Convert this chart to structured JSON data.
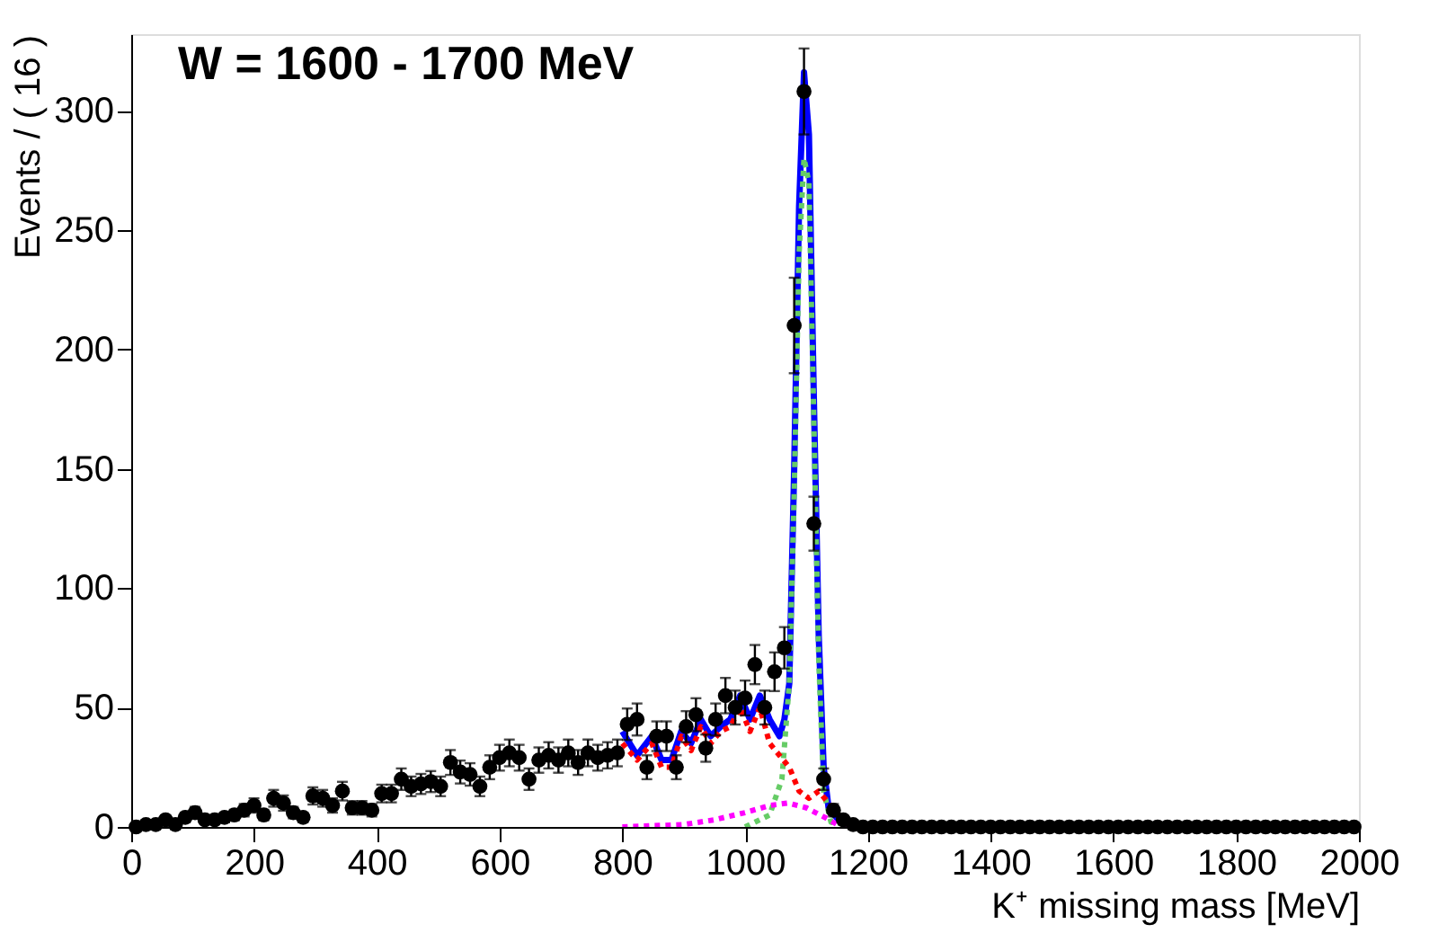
{
  "chart_data": {
    "type": "scatter",
    "xlabel": "K⁺ missing mass [MeV]",
    "ylabel": "Events / ( 16 )",
    "annotations": [
      "W = 1600 - 1700 MeV"
    ],
    "xlim": [
      0,
      2000
    ],
    "xticks": [
      0,
      200,
      400,
      600,
      800,
      1000,
      1200,
      1400,
      1600,
      1800,
      2000
    ],
    "ylim": [
      0,
      332
    ],
    "yticks": [
      0,
      50,
      100,
      150,
      200,
      250,
      300
    ],
    "grid": false,
    "series": [
      {
        "marker": "circle",
        "color": "#000000",
        "x": [
          8,
          24,
          40,
          56,
          72,
          88,
          104,
          120,
          136,
          152,
          168,
          184,
          200,
          216,
          232,
          248,
          264,
          280,
          296,
          312,
          328,
          344,
          360,
          376,
          392,
          408,
          424,
          440,
          456,
          472,
          488,
          504,
          520,
          536,
          552,
          568,
          584,
          600,
          616,
          632,
          648,
          664,
          680,
          696,
          712,
          728,
          744,
          760,
          776,
          792,
          808,
          824,
          840,
          856,
          872,
          888,
          904,
          920,
          936,
          952,
          968,
          984,
          1000,
          1016,
          1032,
          1048,
          1064,
          1080,
          1096,
          1112,
          1128,
          1144,
          1160,
          1176,
          1192,
          1208,
          1224,
          1240,
          1256,
          1272,
          1288,
          1304,
          1320,
          1336,
          1352,
          1368,
          1384,
          1400,
          1416,
          1432,
          1448,
          1464,
          1480,
          1496,
          1512,
          1528,
          1544,
          1560,
          1576,
          1592,
          1608,
          1624,
          1640,
          1656,
          1672,
          1688,
          1704,
          1720,
          1736,
          1752,
          1768,
          1784,
          1800,
          1816,
          1832,
          1848,
          1864,
          1880,
          1896,
          1912,
          1928,
          1944,
          1960,
          1976,
          1992
        ],
        "values": [
          0,
          1,
          1,
          3,
          1,
          4,
          6,
          3,
          3,
          4,
          5,
          7,
          9,
          5,
          12,
          10,
          6,
          4,
          13,
          12,
          9,
          15,
          8,
          8,
          7,
          14,
          14,
          20,
          17,
          18,
          19,
          17,
          27,
          23,
          22,
          17,
          25,
          29,
          31,
          29,
          20,
          28,
          30,
          28,
          31,
          27,
          31,
          29,
          30,
          31,
          43,
          45,
          25,
          38,
          38,
          25,
          42,
          47,
          33,
          45,
          55,
          50,
          54,
          68,
          50,
          65,
          75,
          210,
          308,
          127,
          20,
          7,
          3,
          1,
          0,
          0,
          0,
          0,
          0,
          0,
          0,
          0,
          0,
          0,
          0,
          0,
          0,
          0,
          0,
          0,
          0,
          0,
          0,
          0,
          0,
          0,
          0,
          0,
          0,
          0,
          0,
          0,
          0,
          0,
          0,
          0,
          0,
          0,
          0,
          0,
          0,
          0,
          0,
          0,
          0,
          0,
          0,
          0,
          0,
          0,
          0,
          0,
          0,
          0,
          0
        ],
        "errors": [
          null,
          1,
          1,
          1.7,
          1,
          2,
          2.4,
          1.7,
          1.7,
          2,
          2.2,
          2.6,
          3,
          2.2,
          3.5,
          3.2,
          2.4,
          2,
          3.6,
          3.5,
          3,
          3.9,
          2.8,
          2.8,
          2.6,
          3.7,
          3.7,
          4.5,
          4.1,
          4.2,
          4.4,
          4.1,
          5.2,
          4.8,
          4.7,
          4.1,
          5,
          5.4,
          5.6,
          5.4,
          4.5,
          5.3,
          5.5,
          5.3,
          5.6,
          5.2,
          5.6,
          5.4,
          5.5,
          5.6,
          6.6,
          6.7,
          5,
          6.2,
          6.2,
          5,
          6.5,
          6.9,
          5.7,
          6.7,
          7.4,
          7.1,
          7.3,
          8.2,
          7.1,
          8.1,
          8.7,
          20,
          18,
          11.3,
          4.5,
          2.6,
          1.7,
          1,
          null,
          null,
          null,
          null,
          null,
          null,
          null,
          null,
          null,
          null,
          null,
          null,
          null,
          null,
          null,
          null,
          null,
          null,
          null,
          null,
          null,
          null,
          null,
          null,
          null,
          null,
          null,
          null,
          null,
          null,
          null,
          null,
          null,
          null,
          null,
          null,
          null,
          null,
          null,
          null,
          null,
          null,
          null,
          null,
          null,
          null,
          null,
          null,
          null,
          null,
          null
        ]
      },
      {
        "type": "line",
        "line_style": "solid",
        "color": "#0000ff",
        "x": [
          800,
          824,
          848,
          864,
          880,
          896,
          912,
          928,
          944,
          960,
          976,
          992,
          1008,
          1024,
          1040,
          1056,
          1064,
          1072,
          1080,
          1088,
          1096,
          1104,
          1112,
          1120,
          1128,
          1136,
          1152,
          1168
        ],
        "values": [
          40,
          30,
          38,
          28,
          28,
          40,
          35,
          45,
          38,
          42,
          45,
          55,
          45,
          55,
          45,
          38,
          45,
          60,
          150,
          260,
          316,
          290,
          180,
          80,
          25,
          8,
          3,
          1
        ]
      },
      {
        "type": "line",
        "line_style": "dotted",
        "color": "#66cc66",
        "x": [
          1000,
          1040,
          1060,
          1072,
          1080,
          1088,
          1096,
          1104,
          1112,
          1120,
          1128,
          1140,
          1200
        ],
        "values": [
          0,
          5,
          20,
          60,
          140,
          240,
          280,
          270,
          170,
          70,
          15,
          2,
          0
        ]
      },
      {
        "type": "line",
        "line_style": "dotted",
        "color": "#ff0000",
        "x": [
          800,
          824,
          848,
          864,
          880,
          896,
          912,
          928,
          944,
          960,
          976,
          992,
          1008,
          1024,
          1040,
          1056,
          1072,
          1088,
          1104,
          1120,
          1136,
          1152,
          1168
        ],
        "values": [
          35,
          28,
          35,
          25,
          25,
          38,
          32,
          42,
          35,
          40,
          42,
          50,
          40,
          50,
          35,
          30,
          25,
          15,
          12,
          15,
          10,
          5,
          2
        ]
      },
      {
        "type": "line",
        "line_style": "dotted",
        "color": "#ff00ff",
        "x": [
          800,
          900,
          950,
          1000,
          1040,
          1070,
          1100,
          1130,
          1150,
          1170
        ],
        "values": [
          0,
          1,
          3,
          6,
          9,
          10,
          8,
          4,
          1,
          0
        ]
      }
    ]
  }
}
